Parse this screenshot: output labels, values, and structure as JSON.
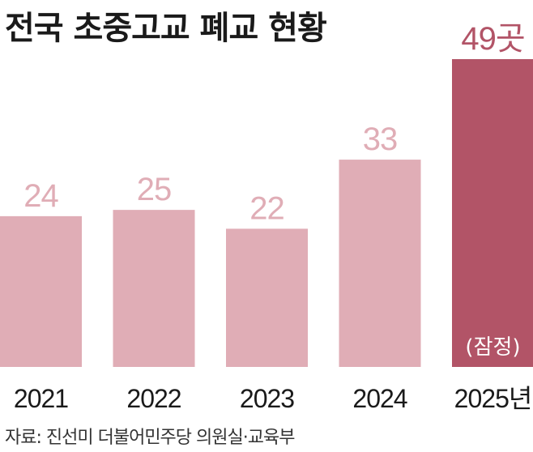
{
  "chart_data": {
    "type": "bar",
    "title": "전국 초중고교 폐교 현황",
    "categories": [
      "2021",
      "2022",
      "2023",
      "2024",
      "2025년"
    ],
    "values": [
      24,
      25,
      22,
      33,
      49
    ],
    "value_labels": [
      "24",
      "25",
      "22",
      "33",
      "49곳"
    ],
    "highlight_note": "(잠정)",
    "ylim": [
      0,
      49
    ],
    "grid": false,
    "colors": {
      "bar": "#e0adb6",
      "highlight_bar": "#b25467",
      "value_label": "#e0adb6",
      "highlight_label": "#b25467",
      "note": "#ffffff",
      "axis_text": "#1a1a1a"
    }
  },
  "source": "자료: 진선미 더불어민주당 의원실·교육부"
}
